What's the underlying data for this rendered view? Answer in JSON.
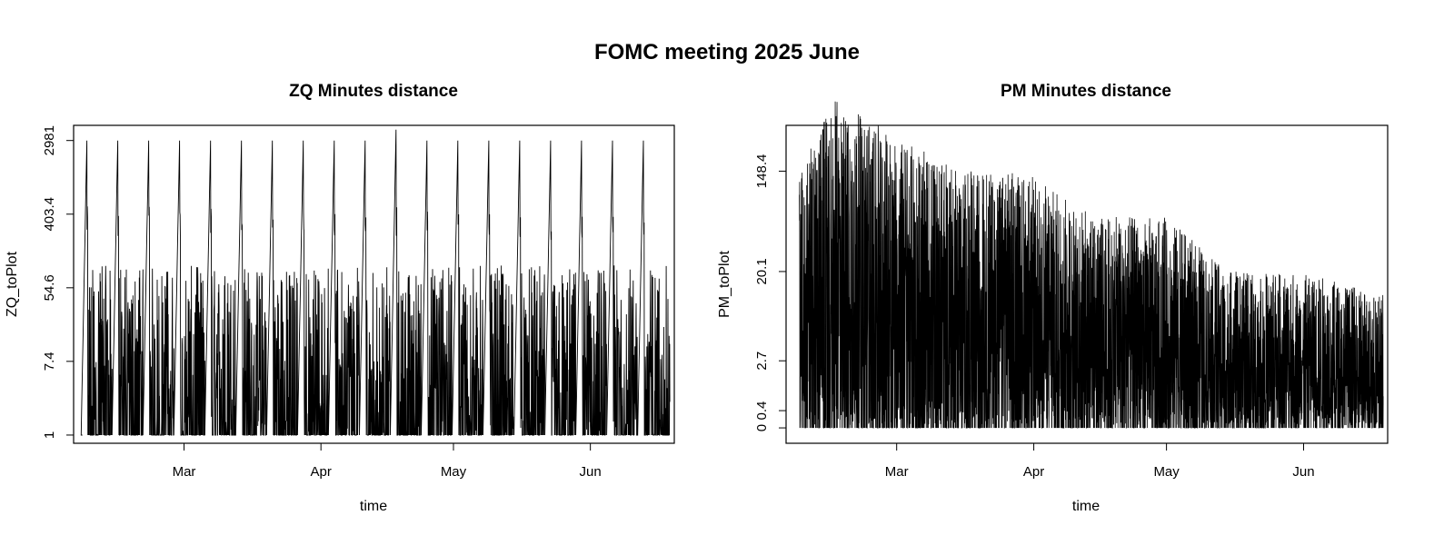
{
  "page": {
    "title": "FOMC meeting 2025 June"
  },
  "chart_data": [
    {
      "type": "line",
      "title": "ZQ Minutes distance",
      "xlabel": "time",
      "ylabel": "ZQ_toPlot",
      "x_axis": {
        "type": "date",
        "tick_labels": [
          "Mar",
          "Apr",
          "May",
          "Jun"
        ],
        "range": [
          "2025-02-04",
          "2025-06-20"
        ]
      },
      "y_axis": {
        "scale": "log",
        "tick_labels": [
          "1",
          "7.4",
          "54.6",
          "403.4",
          "2981"
        ],
        "ylim": [
          0.8,
          4500
        ]
      },
      "grid": false,
      "pattern": "sawtooth",
      "x": [
        "2025-02-07",
        "2025-02-14",
        "2025-02-21",
        "2025-02-28",
        "2025-03-07",
        "2025-03-14",
        "2025-03-21",
        "2025-03-28",
        "2025-04-04",
        "2025-04-11",
        "2025-04-18",
        "2025-04-25",
        "2025-05-02",
        "2025-05-09",
        "2025-05-16",
        "2025-05-23",
        "2025-05-30",
        "2025-06-06",
        "2025-06-13"
      ],
      "peak_values": [
        2981,
        2981,
        2981,
        2981,
        2981,
        2981,
        2981,
        2981,
        2981,
        2981,
        4000,
        2981,
        2981,
        2981,
        2981,
        2981,
        2981,
        2981,
        2981
      ],
      "typical_range": [
        1,
        100
      ]
    },
    {
      "type": "line",
      "title": "PM Minutes distance",
      "xlabel": "time",
      "ylabel": "PM_toPlot",
      "x_axis": {
        "type": "date",
        "tick_labels": [
          "Mar",
          "Apr",
          "May",
          "Jun"
        ],
        "range": [
          "2025-02-04",
          "2025-06-20"
        ]
      },
      "y_axis": {
        "scale": "log",
        "tick_labels": [
          "0",
          "0.4",
          "2.7",
          "20.1",
          "148.4"
        ],
        "ylim": [
          -0.3,
          5.9
        ]
      },
      "grid": false,
      "pattern": "dense-noise",
      "upper_envelope": [
        {
          "x": "2025-02-07",
          "y": 148.4
        },
        {
          "x": "2025-02-15",
          "y": 600
        },
        {
          "x": "2025-03-01",
          "y": 300
        },
        {
          "x": "2025-03-15",
          "y": 148.4
        },
        {
          "x": "2025-03-30",
          "y": 148.4
        },
        {
          "x": "2025-04-15",
          "y": 60
        },
        {
          "x": "2025-05-01",
          "y": 60
        },
        {
          "x": "2025-05-15",
          "y": 20.1
        },
        {
          "x": "2025-06-01",
          "y": 20.1
        },
        {
          "x": "2025-06-20",
          "y": 12
        }
      ]
    }
  ]
}
